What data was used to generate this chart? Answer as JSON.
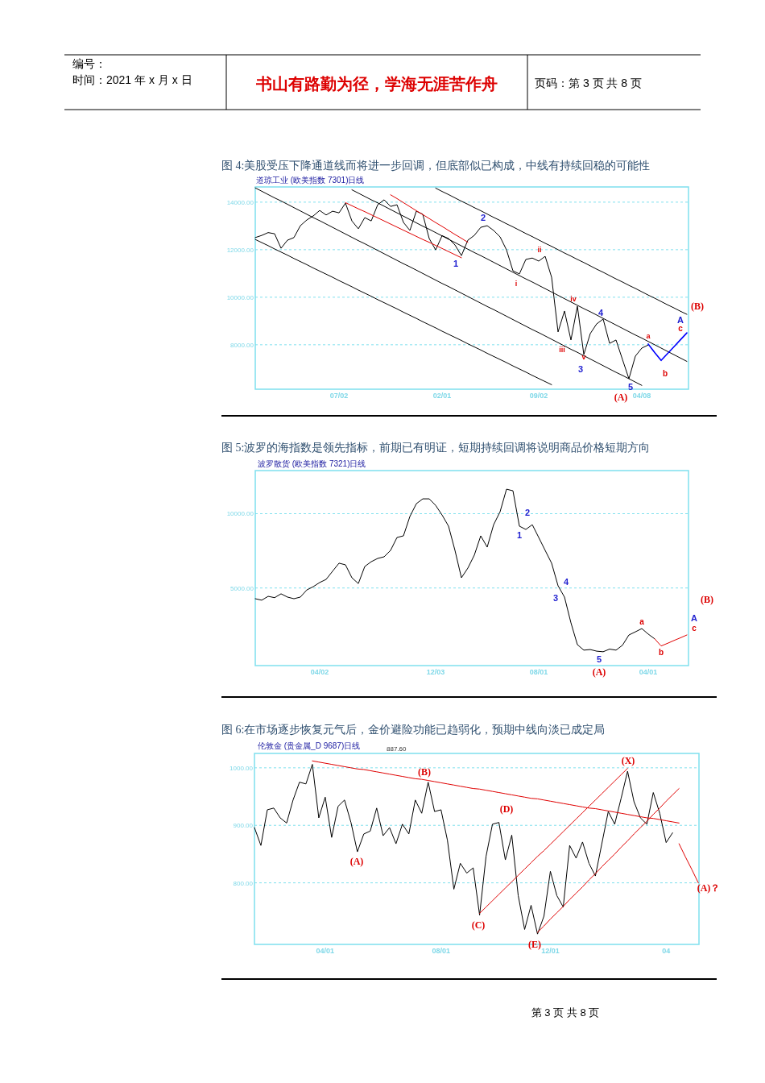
{
  "chart_data": [
    {
      "type": "line",
      "title": "图 4:美股受压下降通道线而将进一步回调，但底部似已构成，中线有持续回稳的可能性",
      "subtitle": "道琼工业 (欧美指数 7301)日线",
      "categories": [
        null,
        null,
        null,
        null,
        null,
        null,
        null,
        null,
        null,
        null,
        null,
        null,
        null,
        "07/02",
        null,
        null,
        null,
        null,
        null,
        null,
        null,
        null,
        null,
        null,
        null,
        null,
        null,
        null,
        null,
        "02/01",
        null,
        null,
        null,
        null,
        null,
        null,
        null,
        null,
        null,
        null,
        null,
        null,
        null,
        null,
        "09/02",
        null,
        null,
        null,
        null,
        null,
        null,
        null,
        null,
        null,
        null,
        null,
        null,
        null,
        null,
        null,
        "04/08",
        null,
        null,
        null,
        null,
        null,
        null,
        null
      ],
      "ylim": [
        6130,
        14640
      ],
      "yticks": [
        {
          "value": 8000,
          "label": "8000.00"
        },
        {
          "value": 10000,
          "label": "10000.00"
        },
        {
          "value": 12000,
          "label": "12000.00"
        },
        {
          "value": 14000,
          "label": "14000.00"
        }
      ],
      "grid": "y",
      "series": [
        {
          "color": "#000000",
          "values": [
            12510,
            12600,
            12720,
            12670,
            12060,
            12400,
            12510,
            13010,
            13250,
            13420,
            13650,
            13460,
            13620,
            13550,
            13960,
            13210,
            12880,
            13350,
            13210,
            13890,
            14100,
            13820,
            13890,
            13150,
            12810,
            13620,
            13490,
            12470,
            11990,
            12590,
            12470,
            12200,
            11750,
            12400,
            12600,
            12940,
            13010,
            12810,
            12540,
            11990,
            11110,
            10980,
            11590,
            11650,
            11520,
            11720,
            10840,
            8540,
            9420,
            8200,
            9620,
            7590,
            8470,
            8880,
            9080,
            8060,
            8200,
            7380,
            6570,
            7520,
            7860,
            7990,
            null,
            null,
            null,
            null,
            null,
            null
          ]
        },
        {
          "color": "#000000",
          "values": [
            12430,
            12300,
            12170,
            12030,
            11900,
            11770,
            11630,
            11500,
            11370,
            11230,
            11100,
            10970,
            10840,
            10700,
            10570,
            10440,
            10300,
            10170,
            10040,
            9900,
            9770,
            9640,
            9510,
            9370,
            9240,
            9110,
            8970,
            8840,
            8710,
            8570,
            8440,
            8310,
            8180,
            8040,
            7910,
            7780,
            7640,
            7510,
            7380,
            7250,
            7110,
            6980,
            6850,
            6710,
            6580,
            6450,
            6320,
            null,
            null,
            null,
            null,
            null,
            null,
            null,
            null,
            null,
            null,
            null,
            null,
            null,
            null,
            null,
            null,
            null,
            null,
            null,
            null,
            null
          ]
        },
        {
          "color": "#000000",
          "values": [
            14600,
            14460,
            14320,
            14180,
            14050,
            13910,
            13770,
            13630,
            13490,
            13350,
            13220,
            13080,
            12940,
            12800,
            12660,
            12520,
            12380,
            12250,
            12110,
            11970,
            11830,
            11690,
            11550,
            11410,
            11280,
            11140,
            11000,
            10860,
            10720,
            10580,
            10450,
            10310,
            10170,
            10030,
            9890,
            9750,
            9610,
            9480,
            9340,
            9200,
            9060,
            8920,
            8780,
            8640,
            8510,
            8370,
            8230,
            8090,
            7950,
            7810,
            7680,
            7540,
            7400,
            7260,
            7120,
            6980,
            6840,
            6710,
            6570,
            6430,
            6290,
            null,
            null,
            null,
            null,
            null,
            null,
            null
          ]
        },
        {
          "color": "#000000",
          "values": [
            null,
            null,
            null,
            null,
            null,
            null,
            null,
            null,
            null,
            null,
            null,
            null,
            null,
            null,
            null,
            14520,
            14380,
            14240,
            14100,
            13970,
            13830,
            13690,
            13550,
            13410,
            13270,
            13130,
            12990,
            12860,
            12720,
            12580,
            12440,
            12300,
            12160,
            12020,
            11880,
            11750,
            11610,
            11470,
            11330,
            11190,
            11050,
            10910,
            10770,
            10640,
            10500,
            10360,
            10220,
            10080,
            9940,
            9800,
            9660,
            9520,
            9390,
            9250,
            9110,
            8970,
            8830,
            8690,
            8550,
            8410,
            8280,
            8140,
            8000,
            7860,
            7720,
            7580,
            7440,
            7300
          ]
        },
        {
          "color": "#000000",
          "values": [
            null,
            null,
            null,
            null,
            null,
            null,
            null,
            null,
            null,
            null,
            null,
            null,
            null,
            null,
            null,
            null,
            null,
            null,
            null,
            null,
            null,
            null,
            null,
            null,
            null,
            null,
            null,
            null,
            14590,
            14450,
            14320,
            14180,
            14040,
            13910,
            13770,
            13640,
            13500,
            13360,
            13230,
            13090,
            12960,
            12820,
            12680,
            12550,
            12410,
            12270,
            12140,
            12000,
            11860,
            11730,
            11590,
            11460,
            11320,
            11180,
            11050,
            10910,
            10770,
            10640,
            10500,
            10370,
            10230,
            10090,
            9960,
            9820,
            9680,
            9550,
            9410,
            9280
          ]
        },
        {
          "color": "#e00000",
          "values": [
            null,
            null,
            null,
            null,
            null,
            null,
            null,
            null,
            null,
            null,
            null,
            null,
            null,
            null,
            13980,
            13850,
            13720,
            13600,
            13470,
            13340,
            13210,
            13080,
            12950,
            12820,
            12690,
            12560,
            12430,
            12310,
            12180,
            12050,
            11920,
            11790,
            11660,
            null,
            null,
            null,
            null,
            null,
            null,
            null,
            null,
            null,
            null,
            null,
            null,
            null,
            null,
            null,
            null,
            null,
            null,
            null,
            null,
            null,
            null,
            null,
            null,
            null,
            null,
            null,
            null,
            null,
            null,
            null,
            null,
            null,
            null,
            null
          ]
        },
        {
          "color": "#e00000",
          "values": [
            null,
            null,
            null,
            null,
            null,
            null,
            null,
            null,
            null,
            null,
            null,
            null,
            null,
            null,
            null,
            null,
            null,
            null,
            null,
            null,
            null,
            14310,
            14150,
            13980,
            13810,
            13640,
            13480,
            13310,
            13140,
            12980,
            12810,
            12640,
            12480,
            12310,
            null,
            null,
            null,
            null,
            null,
            null,
            null,
            null,
            null,
            null,
            null,
            null,
            null,
            null,
            null,
            null,
            null,
            null,
            null,
            null,
            null,
            null,
            null,
            null,
            null,
            null,
            null,
            null,
            null,
            null,
            null,
            null,
            null,
            null
          ]
        },
        {
          "color": "#0000ff",
          "values": [
            null,
            null,
            null,
            null,
            null,
            null,
            null,
            null,
            null,
            null,
            null,
            null,
            null,
            null,
            null,
            null,
            null,
            null,
            null,
            null,
            null,
            null,
            null,
            null,
            null,
            null,
            null,
            null,
            null,
            null,
            null,
            null,
            null,
            null,
            null,
            null,
            null,
            null,
            null,
            null,
            null,
            null,
            null,
            null,
            null,
            null,
            null,
            null,
            null,
            null,
            null,
            null,
            null,
            null,
            null,
            null,
            null,
            null,
            null,
            null,
            null,
            8030,
            7670,
            7340,
            7630,
            7920,
            8210,
            8500
          ]
        }
      ],
      "annotations": [
        "编号：",
        "时间：2021 年 x 月 x 日",
        "书山有路勤为径，学海无涯苦作舟",
        "页码：第 3 页  共 8 页",
        "1",
        "2",
        "i",
        "ii",
        "iii",
        "iv",
        "v",
        "3",
        "4",
        "5",
        "(A)",
        "a",
        "b",
        "c",
        "A",
        "(B)"
      ]
    },
    {
      "type": "line",
      "title": "图 5:波罗的海指数是领先指标，前期已有明证，短期持续回调将说明商品价格短期方向",
      "subtitle": "波罗散货 (欧美指数 7321)日线",
      "categories": [
        null,
        null,
        null,
        null,
        null,
        null,
        null,
        null,
        null,
        null,
        "04/02",
        null,
        null,
        null,
        null,
        null,
        null,
        null,
        null,
        null,
        null,
        null,
        null,
        null,
        null,
        null,
        null,
        null,
        "12/03",
        null,
        null,
        null,
        null,
        null,
        null,
        null,
        null,
        null,
        null,
        null,
        null,
        null,
        null,
        null,
        "08/01",
        null,
        null,
        null,
        null,
        null,
        null,
        null,
        null,
        null,
        null,
        null,
        null,
        null,
        null,
        null,
        null,
        "04/01",
        null,
        null,
        null,
        null,
        null,
        null
      ],
      "ylim": [
        -220,
        12900
      ],
      "yticks": [
        {
          "value": 5000,
          "label": "5000.00"
        },
        {
          "value": 10000,
          "label": "10000.00"
        }
      ],
      "grid": "y",
      "series": [
        {
          "color": "#000000",
          "values": [
            4280,
            4180,
            4440,
            4350,
            4610,
            4390,
            4280,
            4390,
            4870,
            5090,
            5370,
            5580,
            6130,
            6670,
            6560,
            5690,
            5300,
            6450,
            6770,
            6990,
            7100,
            7530,
            8400,
            8510,
            9810,
            10670,
            11000,
            11000,
            10560,
            9910,
            9160,
            7530,
            5690,
            6340,
            7210,
            8510,
            7750,
            9260,
            10130,
            11650,
            11540,
            9160,
            8940,
            9260,
            8400,
            7530,
            6670,
            5150,
            4390,
            2660,
            1190,
            820,
            860,
            750,
            710,
            890,
            820,
            1150,
            1840,
            2050,
            2270,
            1900,
            1580,
            null,
            null,
            null,
            null,
            null
          ]
        },
        {
          "color": "#e00000",
          "values": [
            null,
            null,
            null,
            null,
            null,
            null,
            null,
            null,
            null,
            null,
            null,
            null,
            null,
            null,
            null,
            null,
            null,
            null,
            null,
            null,
            null,
            null,
            null,
            null,
            null,
            null,
            null,
            null,
            null,
            null,
            null,
            null,
            null,
            null,
            null,
            null,
            null,
            null,
            null,
            null,
            null,
            null,
            null,
            null,
            null,
            null,
            null,
            null,
            null,
            null,
            null,
            null,
            null,
            null,
            null,
            null,
            null,
            null,
            null,
            null,
            null,
            null,
            1580,
            1100,
            1280,
            1470,
            1650,
            1840
          ]
        }
      ],
      "annotations": [
        "1",
        "2",
        "3",
        "4",
        "5",
        "(A)",
        "a",
        "b",
        "c",
        "A",
        "(B)"
      ]
    },
    {
      "type": "line",
      "title": "图 6:在市场逐步恢复元气后，金价避险功能已趋弱化，预期中线向淡已成定局",
      "subtitle": "伦敦金 (贵金属_D 9687)日线",
      "categories": [
        null,
        null,
        null,
        null,
        null,
        null,
        null,
        null,
        null,
        null,
        null,
        "04/01",
        null,
        null,
        null,
        null,
        null,
        null,
        null,
        null,
        null,
        null,
        null,
        null,
        null,
        null,
        null,
        null,
        null,
        "08/01",
        null,
        null,
        null,
        null,
        null,
        null,
        null,
        null,
        null,
        null,
        null,
        null,
        null,
        null,
        null,
        null,
        "12/01",
        null,
        null,
        null,
        null,
        null,
        null,
        null,
        null,
        null,
        null,
        null,
        null,
        null,
        null,
        null,
        null,
        null,
        "04",
        null,
        null,
        null,
        null,
        null
      ],
      "ylim": [
        693,
        1025
      ],
      "yticks": [
        {
          "value": 800,
          "label": "800.00"
        },
        {
          "value": 900,
          "label": "900.00"
        },
        {
          "value": 1000,
          "label": "1000.00"
        }
      ],
      "grid": "y",
      "series": [
        {
          "color": "#000000",
          "values": [
            896,
            865,
            927,
            930,
            913,
            904,
            944,
            975,
            972,
            1006,
            913,
            949,
            879,
            933,
            944,
            905,
            854,
            885,
            890,
            930,
            882,
            896,
            868,
            902,
            885,
            944,
            921,
            975,
            924,
            927,
            874,
            789,
            834,
            817,
            826,
            744,
            846,
            902,
            905,
            840,
            883,
            778,
            719,
            761,
            711,
            742,
            820,
            778,
            758,
            865,
            843,
            871,
            834,
            812,
            868,
            924,
            902,
            947,
            994,
            941,
            913,
            902,
            957,
            921,
            870,
            887,
            null,
            null,
            null,
            null
          ]
        },
        {
          "color": "#e00000",
          "values": [
            null,
            null,
            null,
            null,
            null,
            null,
            null,
            null,
            null,
            1012,
            1010,
            1008,
            1006,
            1004,
            1002,
            1000,
            998,
            997,
            995,
            993,
            991,
            989,
            987,
            985,
            983,
            981,
            980,
            978,
            976,
            974,
            972,
            970,
            968,
            966,
            964,
            963,
            961,
            959,
            957,
            955,
            953,
            951,
            949,
            947,
            946,
            944,
            942,
            940,
            938,
            936,
            934,
            932,
            930,
            929,
            927,
            925,
            923,
            921,
            919,
            917,
            915,
            913,
            912,
            910,
            908,
            906,
            904,
            null,
            null,
            null
          ]
        },
        {
          "color": "#e00000",
          "values": [
            null,
            null,
            null,
            null,
            null,
            null,
            null,
            null,
            null,
            null,
            null,
            null,
            null,
            null,
            null,
            null,
            null,
            null,
            null,
            null,
            null,
            null,
            null,
            null,
            null,
            null,
            null,
            null,
            null,
            null,
            null,
            null,
            null,
            null,
            null,
            747,
            758,
            769,
            780,
            791,
            802,
            813,
            824,
            835,
            846,
            856,
            867,
            878,
            889,
            900,
            911,
            922,
            933,
            944,
            955,
            966,
            977,
            988,
            999,
            null,
            null,
            null,
            null,
            null,
            null,
            null,
            null,
            null,
            null,
            null
          ]
        },
        {
          "color": "#e00000",
          "values": [
            null,
            null,
            null,
            null,
            null,
            null,
            null,
            null,
            null,
            null,
            null,
            null,
            null,
            null,
            null,
            null,
            null,
            null,
            null,
            null,
            null,
            null,
            null,
            null,
            null,
            null,
            null,
            null,
            null,
            null,
            null,
            null,
            null,
            null,
            null,
            null,
            null,
            null,
            null,
            null,
            null,
            null,
            null,
            null,
            714,
            725,
            737,
            748,
            759,
            771,
            782,
            793,
            805,
            816,
            828,
            839,
            850,
            862,
            873,
            885,
            896,
            907,
            919,
            930,
            942,
            953,
            964,
            null,
            null,
            null
          ]
        },
        {
          "color": "#e00000",
          "values": [
            null,
            null,
            null,
            null,
            null,
            null,
            null,
            null,
            null,
            null,
            null,
            null,
            null,
            null,
            null,
            null,
            null,
            null,
            null,
            null,
            null,
            null,
            null,
            null,
            null,
            null,
            null,
            null,
            null,
            null,
            null,
            null,
            null,
            null,
            null,
            null,
            null,
            null,
            null,
            null,
            null,
            null,
            null,
            null,
            null,
            null,
            null,
            null,
            null,
            null,
            null,
            null,
            null,
            null,
            null,
            null,
            null,
            null,
            null,
            null,
            null,
            null,
            null,
            null,
            null,
            null,
            868,
            845,
            823,
            800
          ]
        }
      ],
      "annotations": [
        "887.60",
        "第 3 页 共 8 页",
        "(A)",
        "(B)",
        "(C)",
        "(D)",
        "(E)",
        "(X)",
        "(A)？"
      ]
    }
  ]
}
